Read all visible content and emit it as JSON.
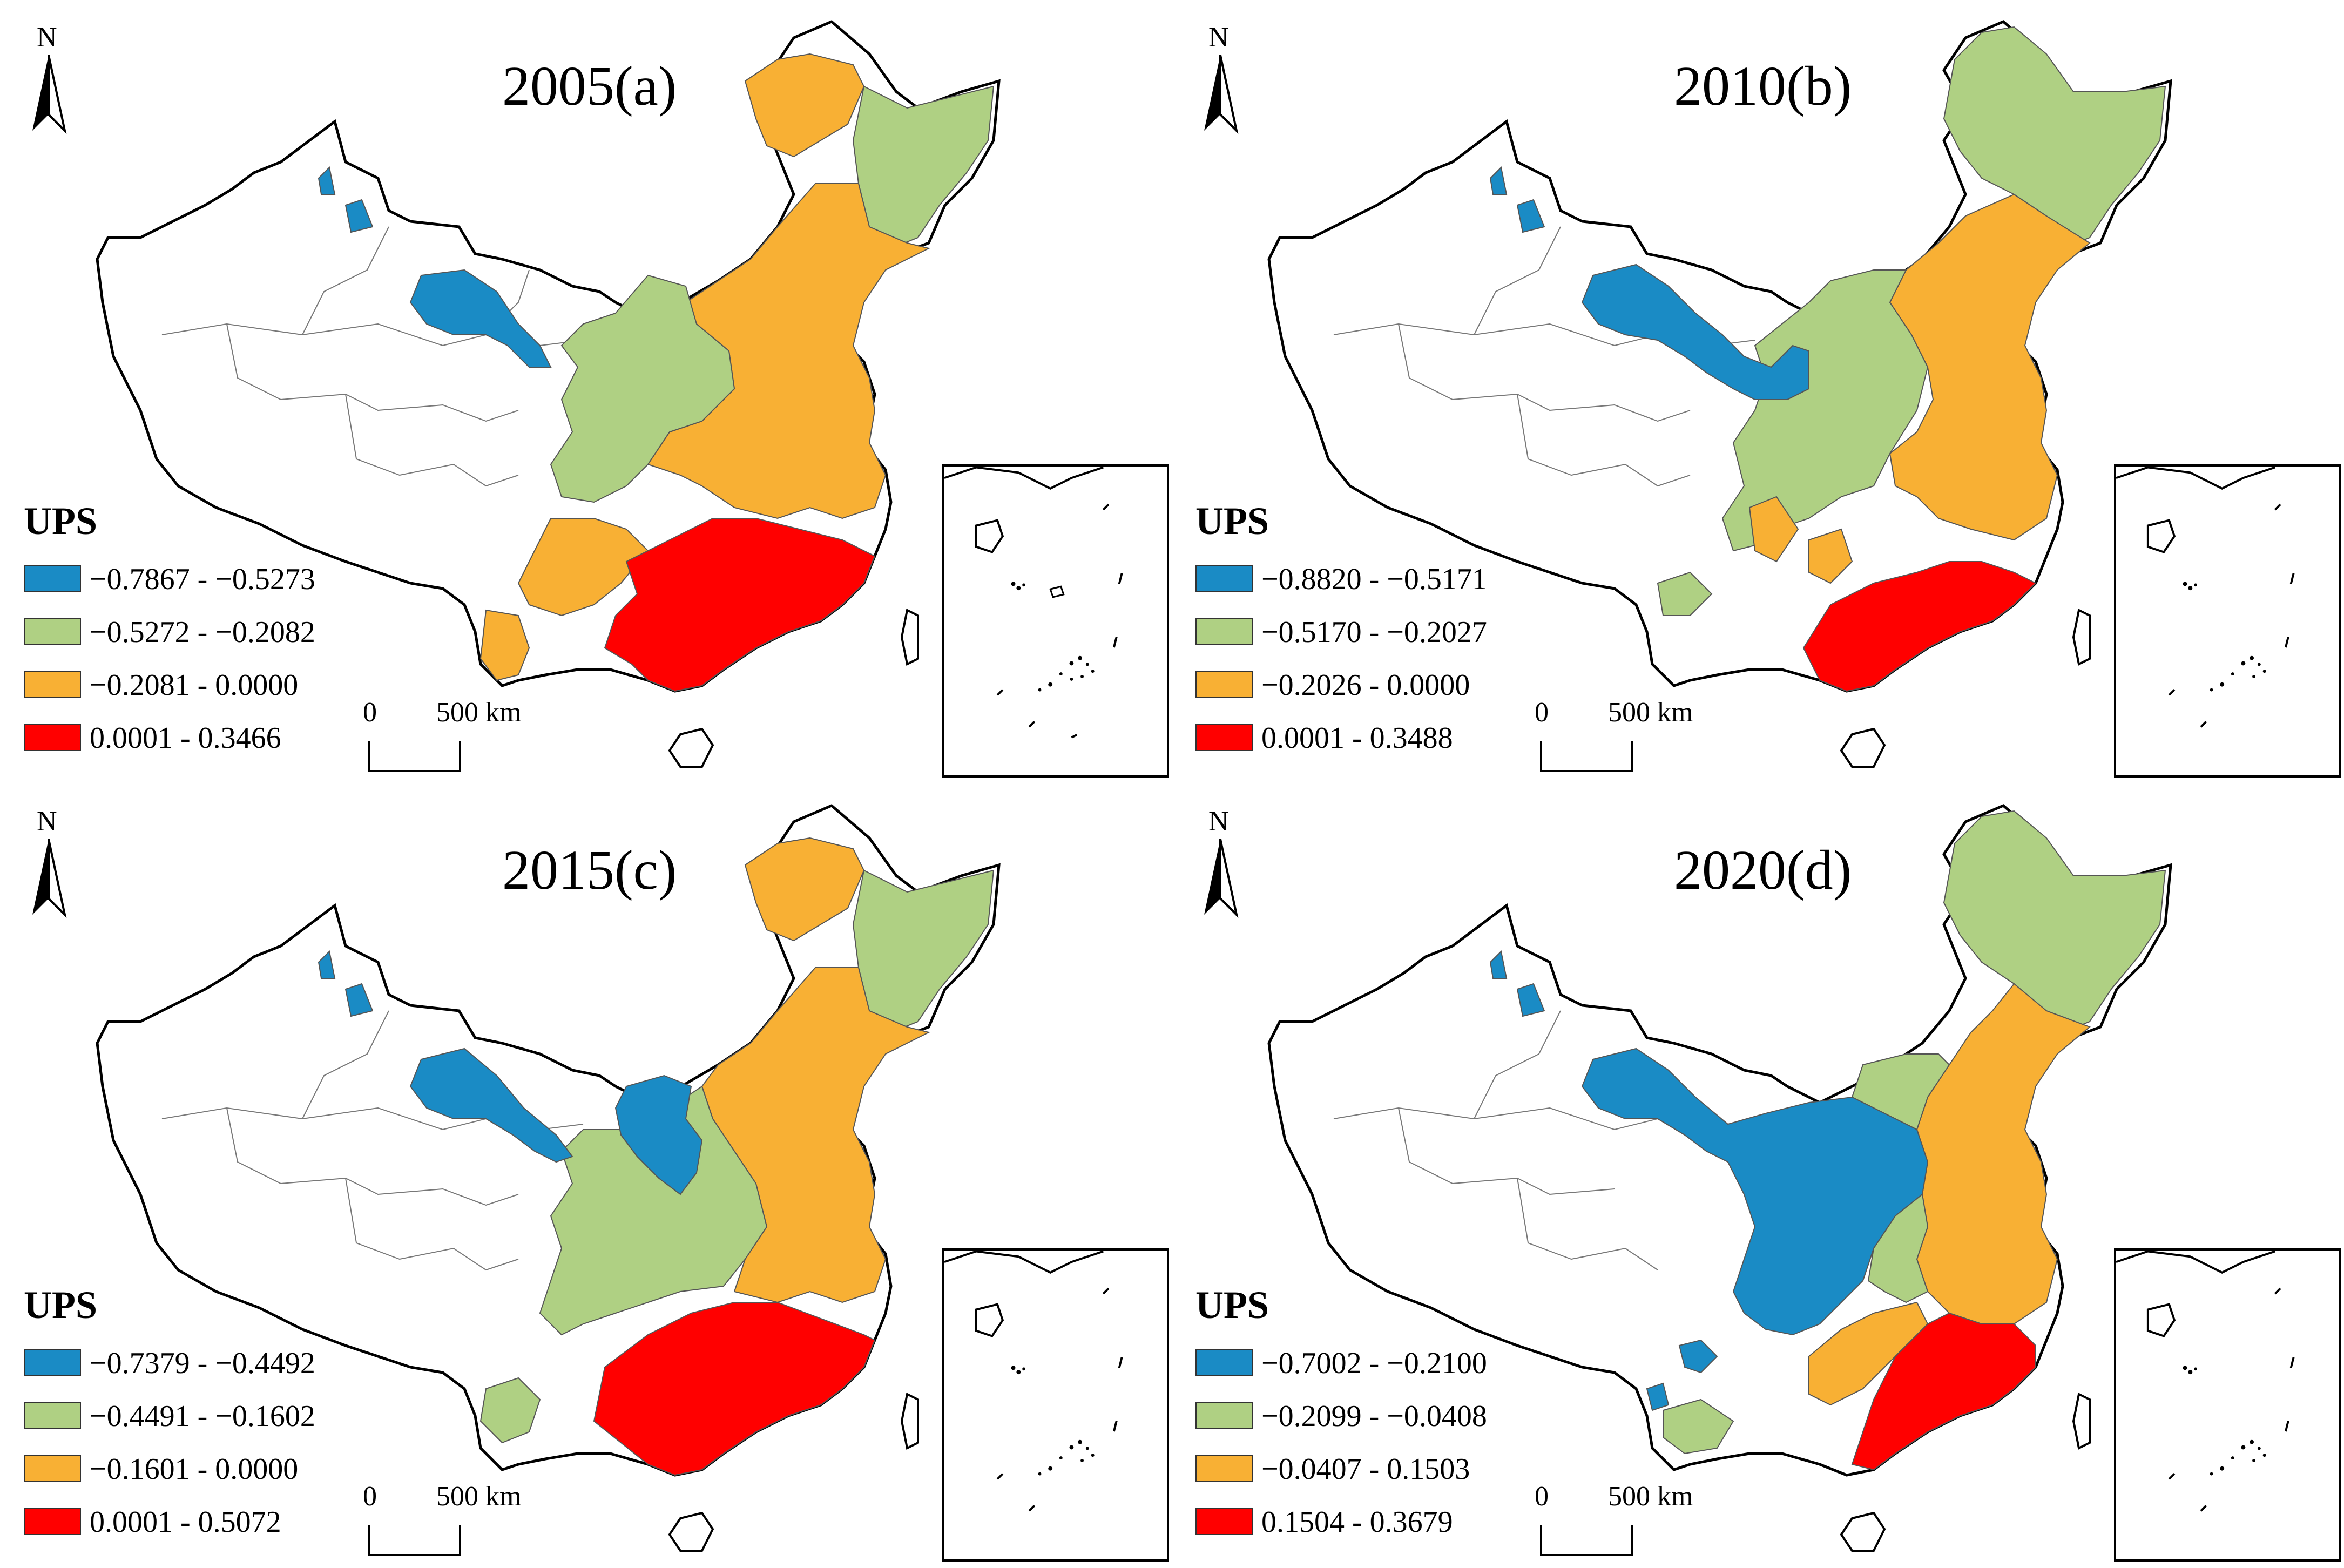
{
  "colors": {
    "blue": "#1a8bc5",
    "green": "#afd083",
    "orange": "#f8b034",
    "red": "#ff0000",
    "border": "#555555",
    "outline": "#000000"
  },
  "panels": [
    {
      "title": "2005(a)",
      "north_label": "N",
      "legend_title": "UPS",
      "legend": [
        "−0.7867 - −0.5273",
        "−0.5272 - −0.2082",
        "−0.2081 - 0.0000",
        "0.0001 - 0.3466"
      ],
      "scale_zero": "0",
      "scale_label": "500 km"
    },
    {
      "title": "2010(b)",
      "north_label": "N",
      "legend_title": "UPS",
      "legend": [
        "−0.8820 - −0.5171",
        "−0.5170 - −0.2027",
        "−0.2026 - 0.0000",
        "0.0001 - 0.3488"
      ],
      "scale_zero": "0",
      "scale_label": "500 km"
    },
    {
      "title": "2015(c)",
      "north_label": "N",
      "legend_title": "UPS",
      "legend": [
        "−0.7379 - −0.4492",
        "−0.4491 - −0.1602",
        "−0.1601 - 0.0000",
        "0.0001 - 0.5072"
      ],
      "scale_zero": "0",
      "scale_label": "500 km"
    },
    {
      "title": "2020(d)",
      "north_label": "N",
      "legend_title": "UPS",
      "legend": [
        "−0.7002 - −0.2100",
        "−0.2099 - −0.0408",
        "−0.0407 - 0.1503",
        "0.1504 - 0.3679"
      ],
      "scale_zero": "0",
      "scale_label": "500 km"
    }
  ]
}
